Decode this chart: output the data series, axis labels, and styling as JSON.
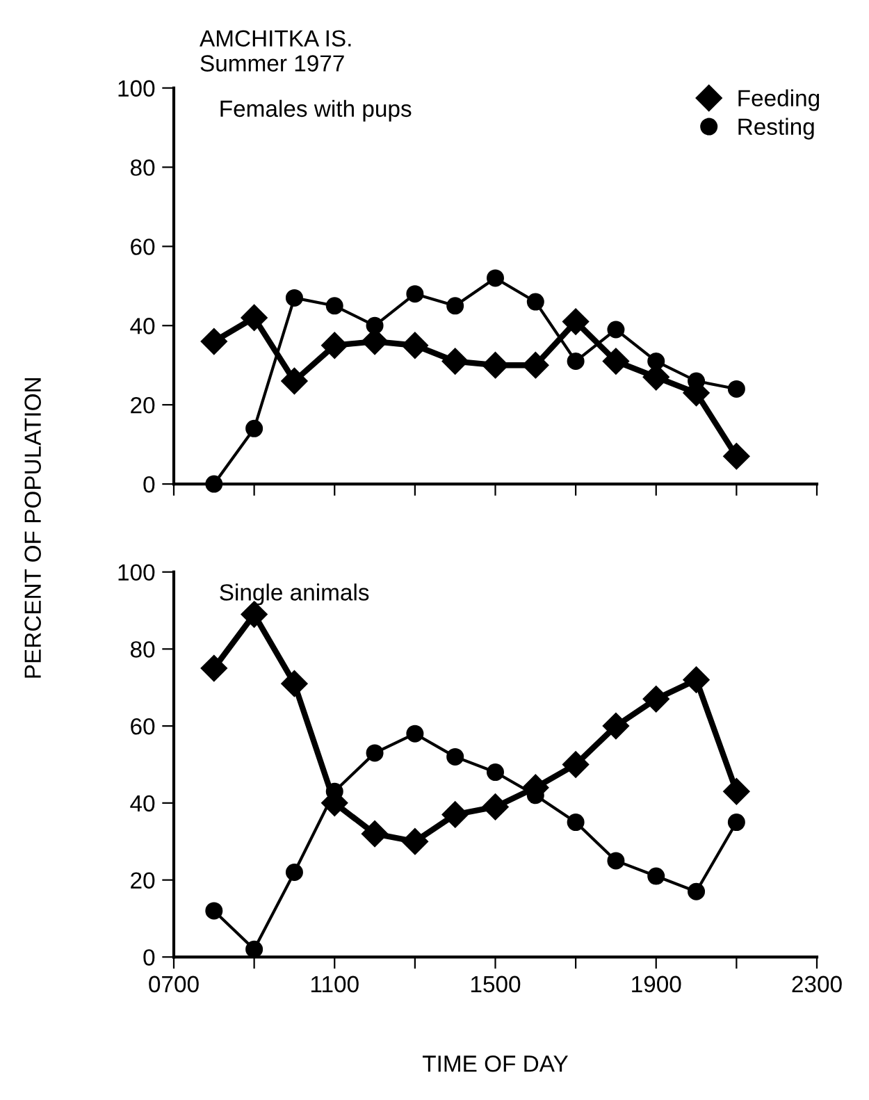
{
  "chart_data": [
    {
      "type": "line",
      "title": "AMCHITKA IS.",
      "subtitle": "Summer 1977",
      "ylabel": "PERCENT OF POPULATION",
      "annotations": [
        "Females with pups"
      ],
      "x": [
        800,
        900,
        1000,
        1100,
        1200,
        1300,
        1400,
        1500,
        1600,
        1700,
        1800,
        1900,
        2000,
        2100
      ],
      "series": [
        {
          "name": "Feeding",
          "color": "#000000",
          "marker": "diamond",
          "values": [
            36,
            42,
            26,
            35,
            36,
            35,
            31,
            30,
            30,
            41,
            31,
            27,
            23,
            7
          ]
        },
        {
          "name": "Resting",
          "color": "#000000",
          "marker": "circle",
          "values": [
            0,
            14,
            47,
            45,
            40,
            48,
            45,
            52,
            46,
            31,
            39,
            31,
            26,
            24
          ]
        }
      ],
      "xlim": [
        700,
        2300
      ],
      "xticks": [
        700,
        {
          "value": 900,
          "label": null
        },
        1100,
        {
          "value": 1300,
          "label": null
        },
        1500,
        {
          "value": 1700,
          "label": null
        },
        1900,
        {
          "value": 2100,
          "label": null
        },
        2300
      ],
      "ylim": [
        0,
        100
      ],
      "yticks": [
        0,
        20,
        40,
        60,
        80,
        100
      ],
      "tick_labels": "y",
      "legend": "top right",
      "grid": false
    },
    {
      "type": "line",
      "xlabel": "TIME OF DAY",
      "annotations": [
        "Single animals"
      ],
      "x": [
        800,
        900,
        1000,
        1100,
        1200,
        1300,
        1400,
        1500,
        1600,
        1700,
        1800,
        1900,
        2000,
        2100
      ],
      "series": [
        {
          "color": "#000000",
          "marker": "diamond",
          "values": [
            75,
            89,
            71,
            40,
            32,
            30,
            37,
            39,
            44,
            50,
            60,
            67,
            72,
            43
          ]
        },
        {
          "color": "#000000",
          "marker": "circle",
          "values": [
            12,
            2,
            22,
            43,
            53,
            58,
            52,
            48,
            42,
            35,
            25,
            21,
            17,
            35
          ]
        }
      ],
      "xlim": [
        700,
        2300
      ],
      "xticks": [
        {
          "value": 700,
          "label": "0700"
        },
        {
          "value": 900,
          "label": null
        },
        1100,
        {
          "value": 1300,
          "label": null
        },
        1500,
        {
          "value": 1700,
          "label": null
        },
        1900,
        {
          "value": 2100,
          "label": null
        },
        2300
      ],
      "ylim": [
        0,
        100
      ],
      "yticks": [
        0,
        20,
        40,
        60,
        80,
        100
      ],
      "legend": false,
      "grid": false
    }
  ]
}
